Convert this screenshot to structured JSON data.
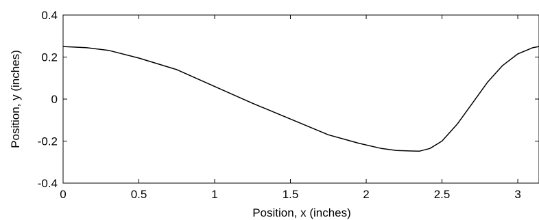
{
  "chart_data": {
    "type": "line",
    "xlabel": "Position, x (inches)",
    "ylabel": "Position, y (inches)",
    "xlim": [
      0,
      3.14
    ],
    "ylim": [
      -0.4,
      0.4
    ],
    "grid": false,
    "x_ticks": [
      0,
      0.5,
      1,
      1.5,
      2,
      2.5,
      3
    ],
    "x_tick_labels": [
      "0",
      "0.5",
      "1",
      "1.5",
      "2",
      "2.5",
      "3"
    ],
    "y_ticks": [
      -0.4,
      -0.2,
      0,
      0.2,
      0.4
    ],
    "y_tick_labels": [
      "-0.4",
      "-0.2",
      "0",
      "0.2",
      "0.4"
    ],
    "series": [
      {
        "color": "#000000",
        "x": [
          0,
          0.15,
          0.3,
          0.5,
          0.75,
          1.0,
          1.25,
          1.5,
          1.75,
          1.95,
          2.1,
          2.2,
          2.3,
          2.35,
          2.42,
          2.5,
          2.6,
          2.7,
          2.8,
          2.9,
          3.0,
          3.1,
          3.14
        ],
        "y": [
          0.25,
          0.245,
          0.232,
          0.195,
          0.14,
          0.06,
          -0.02,
          -0.095,
          -0.17,
          -0.21,
          -0.235,
          -0.245,
          -0.247,
          -0.248,
          -0.235,
          -0.2,
          -0.12,
          -0.02,
          0.08,
          0.16,
          0.215,
          0.245,
          0.25
        ]
      }
    ]
  }
}
